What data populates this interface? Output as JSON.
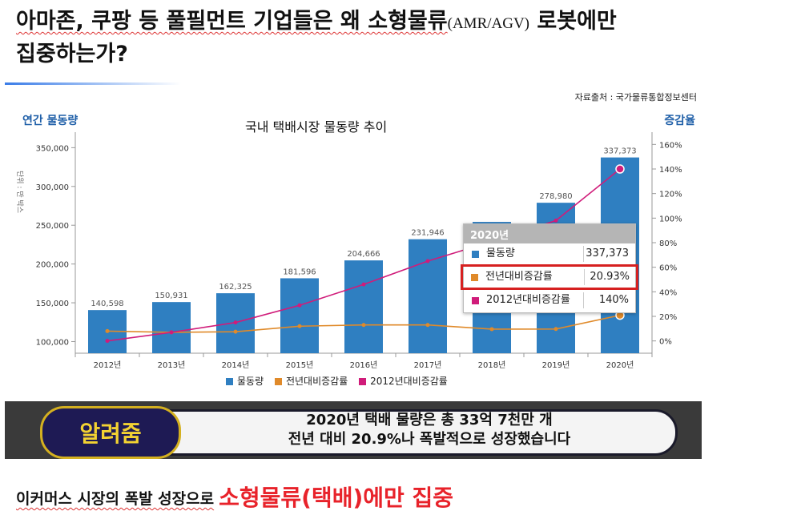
{
  "headline": {
    "line1_a": "아마존, 쿠팡 등 풀필먼트 기업들은 왜 소형물류",
    "line1_small": "(AMR/AGV)",
    "line1_b": " 로봇에만",
    "line2": "집중하는가?"
  },
  "chart_data": {
    "type": "bar",
    "title": "국내 택배시장 물동량 추이",
    "source": "자료출처 : 국가물류통합정보센터",
    "left_axis_title": "연간 물동량",
    "right_axis_title": "증감율",
    "unit_label": "단위 : 만 박스",
    "categories": [
      "2012년",
      "2013년",
      "2014년",
      "2015년",
      "2016년",
      "2017년",
      "2018년",
      "2019년",
      "2020년"
    ],
    "ylim": [
      85000,
      370000
    ],
    "y_ticks": [
      "100,000",
      "150,000",
      "200,000",
      "250,000",
      "300,000",
      "350,000"
    ],
    "y2lim": [
      -10,
      170
    ],
    "y2_ticks": [
      "0%",
      "20%",
      "40%",
      "60%",
      "80%",
      "100%",
      "120%",
      "140%",
      "160%"
    ],
    "series": [
      {
        "name": "물동량",
        "type": "bar",
        "color": "#2f7fc1",
        "values": [
          140598,
          150931,
          162325,
          181596,
          204666,
          231946,
          254278,
          278980,
          337373
        ],
        "labels": [
          "140,598",
          "150,931",
          "162,325",
          "181,596",
          "204,666",
          "231,946",
          "",
          "278,980",
          "337,373"
        ]
      },
      {
        "name": "전년대비증감률",
        "type": "line",
        "color": "#e08a2a",
        "values": [
          8,
          7,
          7.5,
          12,
          13,
          13,
          9.6,
          9.7,
          20.9
        ]
      },
      {
        "name": "2012년대비증감률",
        "type": "line",
        "color": "#d01c7a",
        "values": [
          0,
          7,
          15,
          29,
          46,
          65,
          81,
          98,
          140
        ]
      }
    ],
    "legend": [
      "물동량",
      "전년대비증감률",
      "2012년대비증감률"
    ],
    "grid": false
  },
  "tooltip": {
    "year": "2020년",
    "rows": [
      {
        "label": "물동량",
        "value": "337,373",
        "color": "#2f7fc1"
      },
      {
        "label": "전년대비증감률",
        "value": "20.93%",
        "color": "#e08a2a"
      },
      {
        "label": "2012년대비증감률",
        "value": "140%",
        "color": "#d01c7a"
      }
    ]
  },
  "banner": {
    "badge": "알려줌",
    "line1": "2020년 택배 물량은 총 33억 7천만 개",
    "line2": "전년 대비 20.9%나 폭발적으로 성장했습니다"
  },
  "footer": {
    "text": "이커머스 시장의 폭발 성장으로",
    "emphasis": "소형물류(택배)에만 집중"
  }
}
